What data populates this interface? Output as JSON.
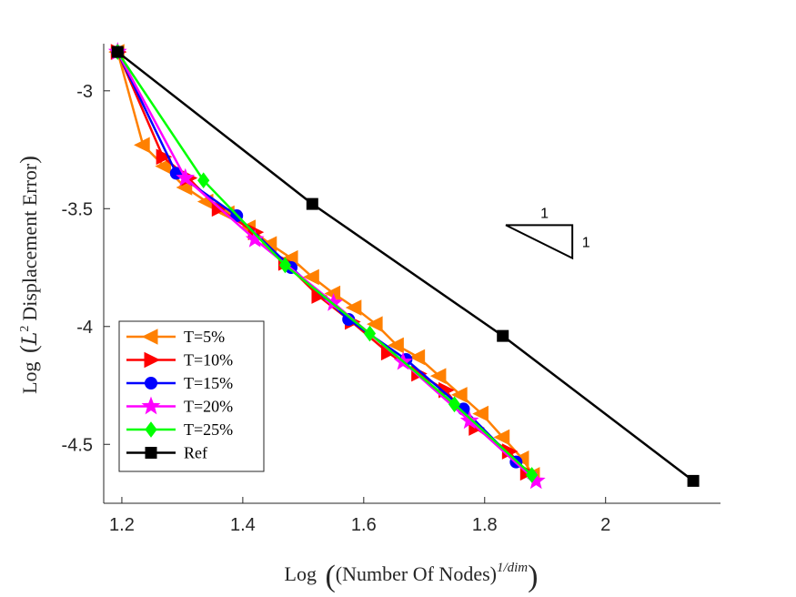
{
  "chart_data": {
    "type": "line",
    "title": "",
    "xlabel": "Log ((Number Of Nodes)^{1/dim})",
    "xlabel_parts": {
      "prefix": "Log",
      "main": "(Number Of Nodes)",
      "sup": "1/dim"
    },
    "ylabel": "Log (L^2 Displacement Error)",
    "ylabel_parts": {
      "prefix": "Log",
      "script": "L",
      "sup": "2",
      "main": "Displacement Error"
    },
    "xlim": [
      1.17,
      2.19
    ],
    "ylim": [
      -4.75,
      -2.8
    ],
    "xticks": [
      1.2,
      1.4,
      1.6,
      1.8,
      2.0
    ],
    "xtick_labels": [
      "1.2",
      "1.4",
      "1.6",
      "1.8",
      "2"
    ],
    "yticks": [
      -3.0,
      -3.5,
      -4.0,
      -4.5
    ],
    "ytick_labels": [
      "-3",
      "-3.5",
      "-4",
      "-4.5"
    ],
    "grid": false,
    "legend_position": "bottom-left",
    "slope_triangle": {
      "corner": [
        1.835,
        -3.57
      ],
      "width": 0.11,
      "height": 0.14,
      "labels": [
        "1",
        "1"
      ]
    },
    "series": [
      {
        "name": "T=5%",
        "color": "#ff8000",
        "marker": "triangle-left",
        "x": [
          1.193,
          1.235,
          1.27,
          1.305,
          1.34,
          1.375,
          1.41,
          1.445,
          1.48,
          1.515,
          1.55,
          1.585,
          1.62,
          1.655,
          1.69,
          1.725,
          1.76,
          1.795,
          1.83,
          1.862,
          1.88
        ],
        "y": [
          -2.835,
          -3.23,
          -3.32,
          -3.41,
          -3.47,
          -3.52,
          -3.58,
          -3.65,
          -3.71,
          -3.79,
          -3.86,
          -3.92,
          -3.99,
          -4.08,
          -4.13,
          -4.21,
          -4.29,
          -4.37,
          -4.47,
          -4.56,
          -4.63
        ]
      },
      {
        "name": "T=10%",
        "color": "#ff0000",
        "marker": "triangle-right",
        "x": [
          1.193,
          1.268,
          1.31,
          1.36,
          1.42,
          1.47,
          1.525,
          1.58,
          1.64,
          1.69,
          1.735,
          1.785,
          1.84,
          1.87
        ],
        "y": [
          -2.835,
          -3.28,
          -3.37,
          -3.5,
          -3.6,
          -3.73,
          -3.87,
          -3.98,
          -4.11,
          -4.2,
          -4.27,
          -4.43,
          -4.53,
          -4.62
        ]
      },
      {
        "name": "T=15%",
        "color": "#0000ff",
        "marker": "circle",
        "x": [
          1.193,
          1.29,
          1.39,
          1.48,
          1.575,
          1.67,
          1.765,
          1.852
        ],
        "y": [
          -2.835,
          -3.35,
          -3.53,
          -3.75,
          -3.97,
          -4.14,
          -4.35,
          -4.575
        ]
      },
      {
        "name": "T=20%",
        "color": "#ff00ff",
        "marker": "star",
        "x": [
          1.193,
          1.305,
          1.42,
          1.55,
          1.665,
          1.775,
          1.885
        ],
        "y": [
          -2.835,
          -3.37,
          -3.63,
          -3.9,
          -4.15,
          -4.4,
          -4.655
        ]
      },
      {
        "name": "T=25%",
        "color": "#00ff00",
        "marker": "diamond",
        "x": [
          1.193,
          1.335,
          1.47,
          1.61,
          1.75,
          1.878
        ],
        "y": [
          -2.835,
          -3.38,
          -3.74,
          -4.03,
          -4.33,
          -4.63
        ]
      },
      {
        "name": "Ref",
        "color": "#000000",
        "marker": "square",
        "x": [
          1.193,
          1.515,
          1.83,
          2.145
        ],
        "y": [
          -2.835,
          -3.48,
          -4.04,
          -4.655
        ]
      }
    ]
  }
}
